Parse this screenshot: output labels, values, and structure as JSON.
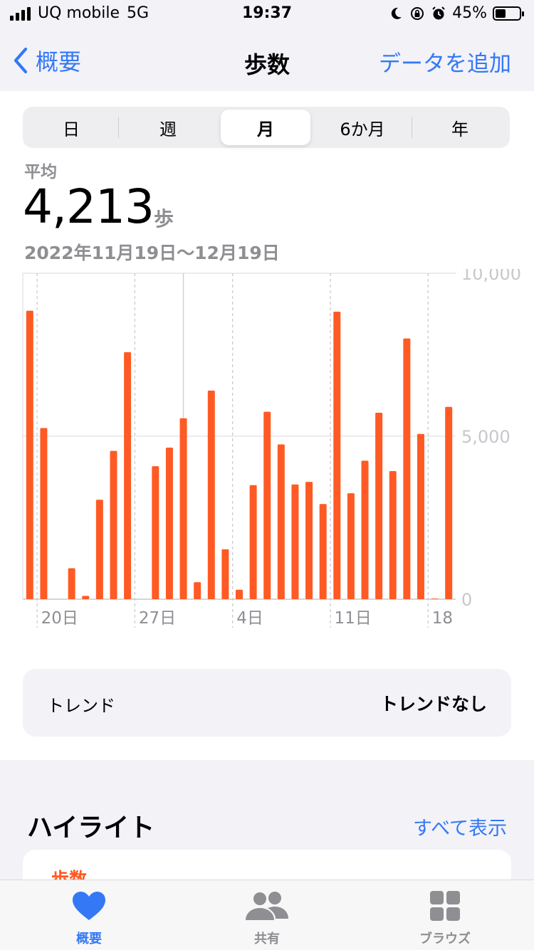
{
  "status_bar": {
    "carrier": "UQ mobile",
    "network": "5G",
    "time": "19:37",
    "battery_percent": "45%",
    "battery_level": 0.45
  },
  "nav": {
    "back_label": "概要",
    "title": "歩数",
    "add_label": "データを追加"
  },
  "segments": {
    "items": [
      "日",
      "週",
      "月",
      "6か月",
      "年"
    ],
    "selected": "月"
  },
  "summary": {
    "avg_label": "平均",
    "avg_value": "4,213",
    "unit": "歩",
    "range": "2022年11月19日〜12月19日"
  },
  "chart_data": {
    "type": "bar",
    "ylim": [
      0,
      10000
    ],
    "yticks": [
      "10,000",
      "5,000",
      "0"
    ],
    "x_ticks": [
      "20日",
      "27日",
      "4日",
      "11日",
      "18"
    ],
    "values": [
      8850,
      5250,
      0,
      950,
      100,
      3050,
      4550,
      7580,
      0,
      4080,
      4650,
      5550,
      520,
      6400,
      1530,
      290,
      3500,
      5750,
      4750,
      3520,
      3600,
      2920,
      8820,
      3250,
      4250,
      5720,
      3930,
      8000,
      5070,
      20,
      5900
    ],
    "color": "#ff5a24"
  },
  "trend": {
    "label": "トレンド",
    "value": "トレンドなし"
  },
  "highlights": {
    "title": "ハイライト",
    "see_all": "すべて表示",
    "card_label": "歩数"
  },
  "tabbar": {
    "items": [
      {
        "label": "概要",
        "icon": "heart-icon",
        "active": true
      },
      {
        "label": "共有",
        "icon": "people-icon",
        "active": false
      },
      {
        "label": "ブラウズ",
        "icon": "grid-icon",
        "active": false
      }
    ],
    "active_color": "#3478f6",
    "inactive_color": "#8e8e93"
  }
}
